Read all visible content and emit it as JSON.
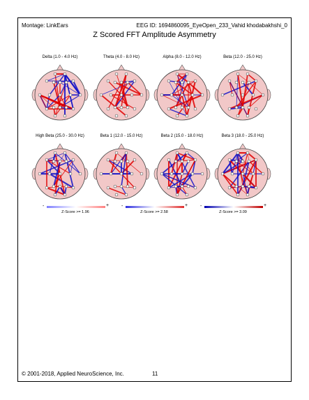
{
  "header": {
    "montage": "Montage:  LinkEars",
    "eeg_id": "EEG ID:  1694860095_EyeOpen_233_Vahid khodabakhshi_0"
  },
  "title": "Z Scored FFT Amplitude Asymmetry",
  "bands": [
    {
      "label": "Delta (1.0 - 4.0 Hz)"
    },
    {
      "label": "Theta (4.0 - 8.0 Hz)"
    },
    {
      "label": "Alpha (8.0 - 12.0 Hz)"
    },
    {
      "label": "Beta (12.0 - 25.0 Hz)"
    },
    {
      "label": "High Beta (25.0 - 30.0 Hz)"
    },
    {
      "label": "Beta 1 (12.0 - 15.0 Hz)"
    },
    {
      "label": "Beta 2 (15.0 - 18.0 Hz)"
    },
    {
      "label": "Beta 3 (18.0 - 25.0 Hz)"
    }
  ],
  "legend": [
    {
      "caption": "Z-Score >= 1.96",
      "minus": "-",
      "plus": "+"
    },
    {
      "caption": "Z-Score >= 2.58",
      "minus": "-",
      "plus": "+"
    },
    {
      "caption": "Z-Score >= 3.09",
      "minus": "-",
      "plus": "+"
    }
  ],
  "footer": {
    "copyright": "© 2001-2018, Applied NeuroScience, Inc.",
    "page_number": "11"
  },
  "colors": {
    "head_fill": "#f2c8c8",
    "positive": "#e00000",
    "negative": "#1010c8",
    "electrode": "#ffffff"
  }
}
